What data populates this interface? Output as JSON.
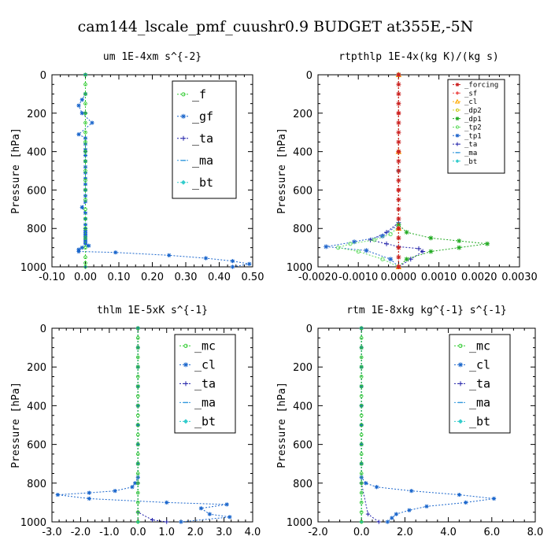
{
  "page_title": "cam144_lscale_pmf_cuushr0.9  BUDGET at355E,-5N",
  "chart_data": [
    {
      "type": "line",
      "title": "um  1E-4xm s^{-2}",
      "ylabel": "Pressure [hPa]",
      "xlabel": "",
      "xlim": [
        -0.1,
        0.5
      ],
      "ylim": [
        1000,
        0
      ],
      "xticks": [
        "-0.10",
        "0.00",
        "0.10",
        "0.20",
        "0.30",
        "0.40",
        "0.50"
      ],
      "yticks": [
        "0",
        "200",
        "400",
        "600",
        "800",
        "1000"
      ],
      "legend_position": "top-right",
      "series": [
        {
          "name": "_f",
          "color": "#33cc33",
          "marker": "circle",
          "x": [
            0.0,
            0.0,
            0.0,
            0.0,
            0.0,
            0.0,
            0.0,
            0.0,
            0.0,
            0.0,
            0.0,
            0.0,
            0.0,
            0.0,
            0.0,
            0.0,
            0.0,
            0.0,
            0.0,
            0.0,
            0.0,
            0.0
          ],
          "y": [
            0,
            50,
            100,
            150,
            200,
            250,
            300,
            350,
            400,
            450,
            500,
            550,
            600,
            650,
            700,
            750,
            800,
            850,
            900,
            950,
            980,
            1000
          ]
        },
        {
          "name": "_gf",
          "color": "#1a66cc",
          "marker": "star",
          "x": [
            0.0,
            0.0,
            -0.01,
            -0.02,
            -0.01,
            0.02,
            -0.02,
            0.0,
            0.0,
            0.0,
            0.0,
            0.0,
            0.0,
            0.0,
            0.0,
            0.0,
            0.0,
            0.0,
            0.0,
            -0.01,
            0.0,
            0.0,
            0.0,
            0.0,
            0.0,
            0.0,
            0.0,
            0.0,
            0.0,
            0.0,
            0.0,
            0.01,
            -0.01,
            -0.02,
            -0.02,
            0.09,
            0.25,
            0.36,
            0.44,
            0.49,
            0.44
          ],
          "y": [
            0,
            100,
            130,
            160,
            200,
            250,
            310,
            330,
            360,
            390,
            420,
            450,
            480,
            510,
            540,
            570,
            600,
            630,
            660,
            690,
            720,
            750,
            780,
            810,
            820,
            830,
            840,
            850,
            860,
            870,
            880,
            890,
            900,
            910,
            920,
            925,
            940,
            955,
            970,
            985,
            1000
          ]
        },
        {
          "name": "_ta",
          "color": "#2222aa",
          "marker": "plus",
          "x": [
            0.0,
            0.0,
            0.0,
            0.0,
            0.0,
            0.0
          ],
          "y": [
            0,
            200,
            400,
            600,
            800,
            1000
          ]
        },
        {
          "name": "_ma",
          "color": "#3399dd",
          "marker": "dash",
          "x": [
            0.0,
            0.0,
            0.0,
            0.0,
            0.0,
            0.0
          ],
          "y": [
            0,
            200,
            400,
            600,
            800,
            1000
          ]
        },
        {
          "name": "_bt",
          "color": "#33cccc",
          "marker": "diamond",
          "x": [
            0.0,
            0.0,
            0.0,
            0.0,
            0.0,
            0.0
          ],
          "y": [
            0,
            200,
            400,
            600,
            800,
            1000
          ]
        }
      ]
    },
    {
      "type": "line",
      "title": "rtpthlp  1E-4x(kg K)/(kg s)",
      "ylabel": "Pressure [hPa]",
      "xlabel": "",
      "xlim": [
        -0.002,
        0.003
      ],
      "ylim": [
        1000,
        0
      ],
      "xticks": [
        "-0.0020",
        "-0.0010",
        "0.0000",
        "0.0010",
        "0.0020",
        "0.0030"
      ],
      "yticks": [
        "0",
        "200",
        "400",
        "600",
        "800",
        "1000"
      ],
      "legend_position": "top-right",
      "series": [
        {
          "name": "_forcing",
          "color": "#cc2222",
          "marker": "star",
          "x": [
            0.0,
            0.0,
            0.0,
            0.0,
            0.0,
            0.0,
            0.0,
            0.0,
            0.0,
            0.0,
            0.0,
            0.0,
            0.0,
            0.0,
            0.0,
            0.0,
            0.0,
            0.0,
            0.0,
            0.0,
            0.0
          ],
          "y": [
            0,
            50,
            100,
            150,
            200,
            250,
            300,
            350,
            400,
            450,
            500,
            550,
            600,
            650,
            700,
            750,
            800,
            850,
            900,
            950,
            1000
          ]
        },
        {
          "name": "_sf",
          "color": "#ee5555",
          "marker": "diamond",
          "x": [
            0.0,
            0.0,
            0.0,
            0.0,
            0.0,
            0.0
          ],
          "y": [
            0,
            200,
            400,
            600,
            800,
            1000
          ]
        },
        {
          "name": "_cl",
          "color": "#ffaa00",
          "marker": "triangle",
          "x": [
            0.0,
            0.0,
            0.0,
            0.0
          ],
          "y": [
            0,
            400,
            800,
            1000
          ]
        },
        {
          "name": "_dp2",
          "color": "#cccc22",
          "marker": "circle",
          "x": [
            0.0,
            0.0,
            0.0,
            0.0
          ],
          "y": [
            0,
            400,
            800,
            1000
          ]
        },
        {
          "name": "_dp1",
          "color": "#22aa22",
          "marker": "star",
          "x": [
            0.0,
            0.0,
            0.0002,
            0.0008,
            0.0015,
            0.0022,
            0.0015,
            0.0008,
            0.0002,
            0.0
          ],
          "y": [
            0,
            780,
            820,
            850,
            865,
            880,
            900,
            920,
            960,
            1000
          ]
        },
        {
          "name": "_tp2",
          "color": "#66dd66",
          "marker": "circle",
          "x": [
            0.0,
            0.0,
            -0.0002,
            -0.0006,
            -0.0012,
            -0.0015,
            -0.001,
            -0.0004,
            0.0
          ],
          "y": [
            0,
            790,
            830,
            860,
            880,
            900,
            920,
            960,
            1000
          ]
        },
        {
          "name": "_tp1",
          "color": "#2266cc",
          "marker": "star",
          "x": [
            0.0,
            0.0,
            -0.0004,
            -0.0011,
            -0.0018,
            -0.0008,
            -0.0002,
            0.0
          ],
          "y": [
            0,
            780,
            840,
            870,
            895,
            915,
            960,
            1000
          ]
        },
        {
          "name": "_ta",
          "color": "#2222aa",
          "marker": "plus",
          "x": [
            0.0,
            0.0,
            -0.0003,
            -0.0007,
            -0.0003,
            0.0,
            0.0005,
            0.0006,
            0.0003,
            0.0
          ],
          "y": [
            0,
            770,
            820,
            860,
            880,
            895,
            905,
            920,
            960,
            1000
          ]
        },
        {
          "name": "_ma",
          "color": "#3399dd",
          "marker": "dash",
          "x": [
            0.0,
            0.0,
            0.0
          ],
          "y": [
            0,
            500,
            1000
          ]
        },
        {
          "name": "_bt",
          "color": "#33cccc",
          "marker": "diamond",
          "x": [
            0.0,
            0.0,
            0.0
          ],
          "y": [
            0,
            500,
            1000
          ]
        }
      ]
    },
    {
      "type": "line",
      "title": "thlm  1E-5xK s^{-1}",
      "ylabel": "Pressure [hPa]",
      "xlabel": "",
      "xlim": [
        -3.0,
        4.0
      ],
      "ylim": [
        1000,
        0
      ],
      "xticks": [
        "-3.0",
        "-2.0",
        "-1.0",
        "0.0",
        "1.0",
        "2.0",
        "3.0",
        "4.0"
      ],
      "yticks": [
        "0",
        "200",
        "400",
        "600",
        "800",
        "1000"
      ],
      "legend_position": "top-right",
      "series": [
        {
          "name": "_mc",
          "color": "#33cc33",
          "marker": "circle",
          "x": [
            0.0,
            0.0,
            0.0,
            0.0,
            0.0,
            0.0,
            0.0,
            0.0,
            0.0,
            0.0,
            0.0,
            0.0,
            0.0,
            0.0,
            0.0,
            0.0,
            0.0,
            0.0,
            0.0,
            0.0,
            0.0
          ],
          "y": [
            0,
            50,
            100,
            150,
            200,
            250,
            300,
            350,
            400,
            450,
            500,
            550,
            600,
            650,
            700,
            750,
            800,
            850,
            900,
            950,
            1000
          ]
        },
        {
          "name": "_cl",
          "color": "#1a66cc",
          "marker": "star",
          "x": [
            0.0,
            0.0,
            0.0,
            0.0,
            0.0,
            0.0,
            0.0,
            0.0,
            0.0,
            -0.1,
            -0.2,
            -0.8,
            -1.7,
            -2.8,
            -1.7,
            1.0,
            3.1,
            2.2,
            2.5,
            3.2,
            1.5
          ],
          "y": [
            0,
            100,
            200,
            300,
            400,
            500,
            600,
            700,
            770,
            800,
            820,
            840,
            850,
            860,
            880,
            900,
            910,
            930,
            960,
            975,
            1000
          ]
        },
        {
          "name": "_ta",
          "color": "#2222aa",
          "marker": "plus",
          "x": [
            0.0,
            0.0,
            0.0,
            0.0,
            0.5,
            1.0
          ],
          "y": [
            0,
            400,
            800,
            950,
            990,
            1000
          ]
        },
        {
          "name": "_ma",
          "color": "#3399dd",
          "marker": "dash",
          "x": [
            0.0,
            0.0,
            0.0
          ],
          "y": [
            0,
            500,
            1000
          ]
        },
        {
          "name": "_bt",
          "color": "#33cccc",
          "marker": "diamond",
          "x": [
            0.0,
            0.0,
            0.0
          ],
          "y": [
            0,
            500,
            1000
          ]
        }
      ]
    },
    {
      "type": "line",
      "title": "rtm  1E-8xkg kg^{-1} s^{-1}",
      "ylabel": "Pressure [hPa]",
      "xlabel": "",
      "xlim": [
        -2.0,
        8.0
      ],
      "ylim": [
        1000,
        0
      ],
      "xticks": [
        "-2.0",
        "0.0",
        "2.0",
        "4.0",
        "6.0",
        "8.0"
      ],
      "yticks": [
        "0",
        "200",
        "400",
        "600",
        "800",
        "1000"
      ],
      "legend_position": "top-right",
      "series": [
        {
          "name": "_mc",
          "color": "#33cc33",
          "marker": "circle",
          "x": [
            0.0,
            0.0,
            0.0,
            0.0,
            0.0,
            0.0,
            0.0,
            0.0,
            0.0,
            0.0,
            0.0,
            0.0,
            0.0,
            0.0,
            0.0,
            0.0,
            0.0,
            0.0,
            0.0,
            0.0,
            0.0
          ],
          "y": [
            0,
            50,
            100,
            150,
            200,
            250,
            300,
            350,
            400,
            450,
            500,
            550,
            600,
            650,
            700,
            750,
            800,
            850,
            900,
            950,
            1000
          ]
        },
        {
          "name": "_cl",
          "color": "#1a66cc",
          "marker": "star",
          "x": [
            0.0,
            0.0,
            0.0,
            0.0,
            0.0,
            0.0,
            0.0,
            0.0,
            0.0,
            0.2,
            0.7,
            2.3,
            4.5,
            6.1,
            4.8,
            3.0,
            2.2,
            1.6,
            1.4,
            1.2
          ],
          "y": [
            0,
            100,
            200,
            300,
            400,
            500,
            600,
            700,
            770,
            800,
            820,
            840,
            860,
            880,
            900,
            920,
            940,
            960,
            980,
            1000
          ]
        },
        {
          "name": "_ta",
          "color": "#2222aa",
          "marker": "plus",
          "x": [
            0.0,
            0.0,
            0.0,
            0.3,
            0.8
          ],
          "y": [
            0,
            400,
            800,
            960,
            1000
          ]
        },
        {
          "name": "_ma",
          "color": "#3399dd",
          "marker": "dash",
          "x": [
            0.0,
            0.0,
            0.0
          ],
          "y": [
            0,
            500,
            1000
          ]
        },
        {
          "name": "_bt",
          "color": "#33cccc",
          "marker": "diamond",
          "x": [
            0.0,
            0.0,
            0.0
          ],
          "y": [
            0,
            500,
            1000
          ]
        }
      ]
    }
  ]
}
